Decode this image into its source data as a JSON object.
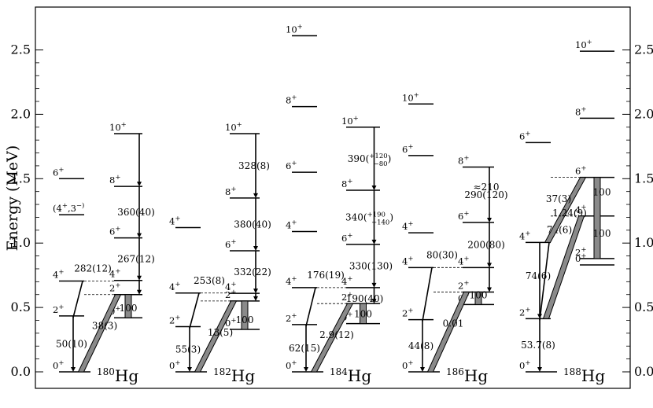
{
  "figure": {
    "ylabel": "Energy (MeV)",
    "y_ticks": [
      "0.0",
      "0.5",
      "1.0",
      "1.5",
      "2.0",
      "2.5"
    ],
    "ylim": [
      -0.1,
      2.75
    ]
  },
  "nuclei": [
    {
      "mass": "180",
      "symbol": "Hg",
      "gs": [
        {
          "E": 0.0,
          "spin": "0",
          "parity": "+"
        },
        {
          "E": 0.434,
          "spin": "2",
          "parity": "+"
        },
        {
          "E": 0.705,
          "spin": "4",
          "parity": "+"
        },
        {
          "E": 1.5,
          "spin": "6",
          "parity": "+"
        },
        {
          "E": 1.22,
          "spin": "(4",
          "parity": "+",
          "extra": ",3",
          "extra_parity": "−)"
        }
      ],
      "band": [
        {
          "E": 0.42,
          "spin": "0",
          "parity": "+"
        },
        {
          "E": 0.6,
          "spin": "2",
          "parity": "+"
        },
        {
          "E": 0.71,
          "spin": "4",
          "parity": "+"
        },
        {
          "E": 1.04,
          "spin": "6",
          "parity": "+"
        },
        {
          "E": 1.44,
          "spin": "8",
          "parity": "+"
        },
        {
          "E": 1.85,
          "spin": "10",
          "parity": "+"
        }
      ],
      "labels": {
        "g2": "50(10)",
        "g4": "282(12)",
        "inter": "38(3)",
        "b0": "100",
        "b4": "267(12)",
        "b6": "360(40)"
      }
    },
    {
      "mass": "182",
      "symbol": "Hg",
      "gs": [
        {
          "E": 0.0,
          "spin": "0",
          "parity": "+"
        },
        {
          "E": 0.351,
          "spin": "2",
          "parity": "+"
        },
        {
          "E": 0.612,
          "spin": "4",
          "parity": "+"
        },
        {
          "E": 1.12,
          "spin": "4",
          "parity": "+"
        }
      ],
      "band": [
        {
          "E": 0.33,
          "spin": "0",
          "parity": "+"
        },
        {
          "E": 0.55,
          "spin": "2",
          "parity": "+"
        },
        {
          "E": 0.61,
          "spin": "4",
          "parity": "+"
        },
        {
          "E": 0.94,
          "spin": "6",
          "parity": "+"
        },
        {
          "E": 1.35,
          "spin": "8",
          "parity": "+"
        },
        {
          "E": 1.85,
          "spin": "10",
          "parity": "+"
        }
      ],
      "labels": {
        "g2": "55(3)",
        "g4": "253(8)",
        "inter": "13(5)",
        "b0": "100",
        "b4": "332(22)",
        "b6": "380(40)",
        "b8": "328(8)"
      }
    },
    {
      "mass": "184",
      "symbol": "Hg",
      "gs": [
        {
          "E": 0.0,
          "spin": "0",
          "parity": "+"
        },
        {
          "E": 0.367,
          "spin": "2",
          "parity": "+"
        },
        {
          "E": 0.654,
          "spin": "4",
          "parity": "+"
        },
        {
          "E": 1.09,
          "spin": "4",
          "parity": "+"
        },
        {
          "E": 1.55,
          "spin": "6",
          "parity": "+"
        },
        {
          "E": 2.06,
          "spin": "8",
          "parity": "+"
        },
        {
          "E": 2.61,
          "spin": "10",
          "parity": "+"
        }
      ],
      "band": [
        {
          "E": 0.375,
          "spin": "0",
          "parity": "+"
        },
        {
          "E": 0.53,
          "spin": "2",
          "parity": "+"
        },
        {
          "E": 0.654,
          "spin": "4",
          "parity": "+"
        },
        {
          "E": 0.99,
          "spin": "6",
          "parity": "+"
        },
        {
          "E": 1.41,
          "spin": "8",
          "parity": "+"
        },
        {
          "E": 1.9,
          "spin": "10",
          "parity": "+"
        }
      ],
      "labels": {
        "g2": "62(15)",
        "g4": "176(19)",
        "inter": "2.9(12)",
        "b0": "100",
        "b2": "190(40)",
        "b4": "330(130)",
        "b6": "340",
        "b6_up": "+190",
        "b6_dn": "−140",
        "b8": "390",
        "b8_up": "+120",
        "b8_dn": "−80"
      }
    },
    {
      "mass": "186",
      "symbol": "Hg",
      "gs": [
        {
          "E": 0.0,
          "spin": "0",
          "parity": "+"
        },
        {
          "E": 0.405,
          "spin": "2",
          "parity": "+"
        },
        {
          "E": 0.81,
          "spin": "4",
          "parity": "+"
        },
        {
          "E": 1.08,
          "spin": "4",
          "parity": "+"
        },
        {
          "E": 1.68,
          "spin": "6",
          "parity": "+"
        },
        {
          "E": 2.08,
          "spin": "10",
          "parity": "+"
        }
      ],
      "band": [
        {
          "E": 0.523,
          "spin": "0",
          "parity": "+"
        },
        {
          "E": 0.62,
          "spin": "2",
          "parity": "+"
        },
        {
          "E": 0.81,
          "spin": "4",
          "parity": "+"
        },
        {
          "E": 1.16,
          "spin": "6",
          "parity": "+"
        },
        {
          "E": 1.59,
          "spin": "8",
          "parity": "+"
        }
      ],
      "labels": {
        "g2": "44(8)",
        "g4": "80(30)",
        "inter": "0.01",
        "b0": "100",
        "b4": "200(80)",
        "b6": "290(120)",
        "b8": "≈210"
      }
    },
    {
      "mass": "188",
      "symbol": "Hg",
      "gs": [
        {
          "E": 0.0,
          "spin": "0",
          "parity": "+"
        },
        {
          "E": 0.413,
          "spin": "2",
          "parity": "+"
        },
        {
          "E": 1.005,
          "spin": "4",
          "parity": "+"
        },
        {
          "E": 1.78,
          "spin": "6",
          "parity": "+"
        }
      ],
      "band": [
        {
          "E": 0.83,
          "spin": "0",
          "parity": "+"
        },
        {
          "E": 0.88,
          "spin": "2",
          "parity": "+"
        },
        {
          "E": 1.21,
          "spin": "4",
          "parity": "+"
        },
        {
          "E": 1.51,
          "spin": "6",
          "parity": "+"
        },
        {
          "E": 1.97,
          "spin": "8",
          "parity": "+"
        },
        {
          "E": 2.49,
          "spin": "10",
          "parity": "+"
        }
      ],
      "labels": {
        "g2": "53.7(8)",
        "g4": "74(6)",
        "inter": "1.24(9)",
        "inter2": "37(3)",
        "b2": "100",
        "b4": "100"
      }
    }
  ]
}
